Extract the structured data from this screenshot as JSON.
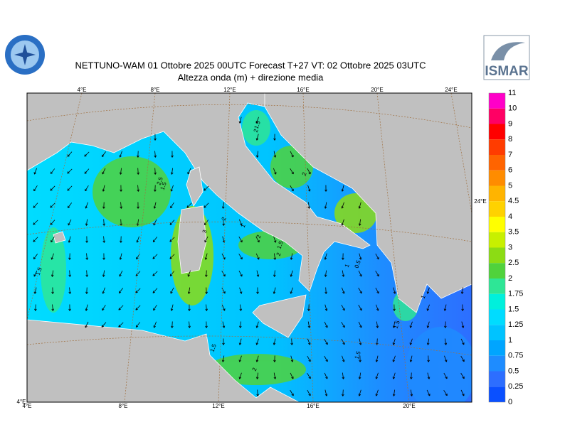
{
  "header": {
    "title": "NETTUNO-WAM  01  Ottobre  2025 00UTC Forecast T+27 VT: 02  Ottobre  2025 03UTC",
    "subtitle": "Altezza onda (m) + direzione media",
    "logo_right": "ISMAR"
  },
  "map": {
    "top_labels": [
      "4°E",
      "8°E",
      "12°E",
      "16°E",
      "20°E",
      "24°E"
    ],
    "bottom_labels": [
      "4°E",
      "8°E",
      "12°E",
      "16°E",
      "20°E"
    ],
    "corner_label": "4°E",
    "right_label": "24°E",
    "contour_labels": [
      "1.5",
      "2",
      "2",
      "2.5",
      "1.5",
      "2",
      "3",
      "1",
      "2",
      "1.5",
      "2",
      "1",
      "0.5",
      "1",
      "1.5",
      "1.5",
      "2",
      "1.5",
      "1.5"
    ]
  },
  "legend": {
    "levels": [
      11,
      10,
      9,
      8,
      7,
      6,
      5,
      4.5,
      4,
      3.5,
      3,
      2.5,
      2,
      1.75,
      1.5,
      1.25,
      1,
      0.75,
      0.5,
      0.25,
      0
    ],
    "colors": [
      "#ff00c8",
      "#ff0064",
      "#ff0000",
      "#ff3c00",
      "#ff6400",
      "#ff8c00",
      "#ffb400",
      "#ffd200",
      "#ffff00",
      "#c8f000",
      "#8cdc14",
      "#50d23c",
      "#2ee696",
      "#00f0dc",
      "#00dcff",
      "#00c3ff",
      "#00a5ff",
      "#1e8cff",
      "#2d6eff",
      "#0a50ff"
    ]
  }
}
